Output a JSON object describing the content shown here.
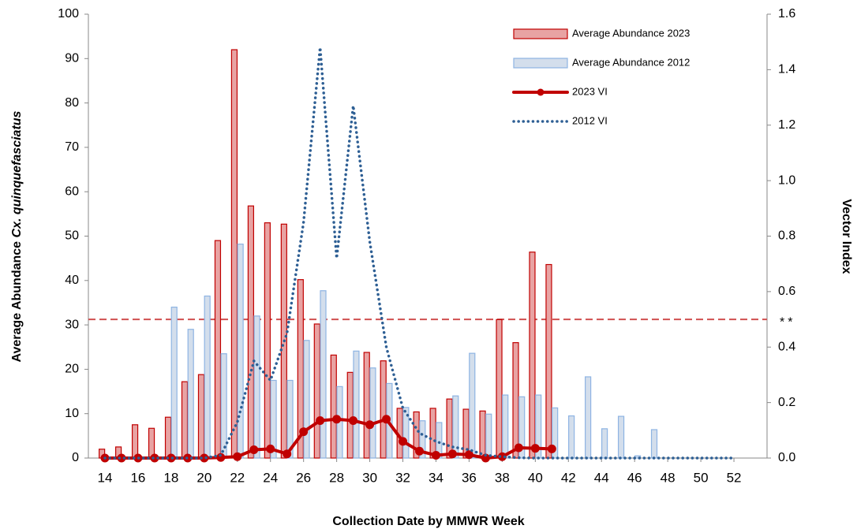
{
  "chart_data": {
    "type": "bar",
    "xlabel": "Collection Date by MMWR Week",
    "ylabel": "Average Abundance",
    "ylabel_species": "Cx. quinquefasciatus",
    "y2label": "Vector Index",
    "x": [
      14,
      15,
      16,
      17,
      18,
      19,
      20,
      21,
      22,
      23,
      24,
      25,
      26,
      27,
      28,
      29,
      30,
      31,
      32,
      33,
      34,
      35,
      36,
      37,
      38,
      39,
      40,
      41,
      42,
      43,
      44,
      45,
      46,
      47,
      48,
      49,
      50,
      51,
      52
    ],
    "xlim": [
      13,
      54
    ],
    "xticks": [
      14,
      16,
      18,
      20,
      22,
      24,
      26,
      28,
      30,
      32,
      34,
      36,
      38,
      40,
      42,
      44,
      46,
      48,
      50,
      52
    ],
    "ylim": [
      0,
      100
    ],
    "yticks": [
      0,
      10,
      20,
      30,
      40,
      50,
      60,
      70,
      80,
      90,
      100
    ],
    "y2lim": [
      0,
      1.6
    ],
    "y2ticks": [
      {
        "value": 0,
        "label": "0.0"
      },
      {
        "value": 0.2,
        "label": "0.2"
      },
      {
        "value": 0.4,
        "label": "0.4"
      },
      {
        "value": 0.6,
        "label": "0.6"
      },
      {
        "value": 0.8,
        "label": "0.8"
      },
      {
        "value": 1.0,
        "label": "1.0"
      },
      {
        "value": 1.2,
        "label": "1.2"
      },
      {
        "value": 1.4,
        "label": "1.4"
      },
      {
        "value": 1.6,
        "label": "1.6"
      }
    ],
    "threshold": {
      "value": 0.5,
      "label": "**",
      "color": "#d05050"
    },
    "series": [
      {
        "name": "Average Abundance 2023",
        "type": "bar",
        "color": "#e8a3a3",
        "edge": "#c00000",
        "values": [
          2,
          2.5,
          7.5,
          6.7,
          9.2,
          17.2,
          18.8,
          49,
          92,
          56.8,
          53,
          52.7,
          40.2,
          30.2,
          23.2,
          19.3,
          23.8,
          21.9,
          11.2,
          10.4,
          11.2,
          13.3,
          11,
          10.6,
          31.2,
          26,
          46.4,
          43.6,
          null,
          null,
          null,
          null,
          null,
          null,
          null,
          null,
          null,
          null,
          null
        ]
      },
      {
        "name": "Average Abundance 2012",
        "type": "bar",
        "color": "#d3deec",
        "edge": "#8eb4e3",
        "values": [
          0,
          0,
          0,
          0,
          34,
          29,
          36.5,
          23.5,
          48.2,
          32,
          17.5,
          17.5,
          26.5,
          37.7,
          16.1,
          24.1,
          20.3,
          16.8,
          11.4,
          8.4,
          8,
          14,
          23.6,
          9.9,
          14.2,
          13.8,
          14.2,
          11.3,
          9.5,
          18.3,
          6.6,
          9.4,
          0.5,
          6.4,
          0,
          0,
          0,
          0,
          0
        ]
      },
      {
        "name": "2023 VI",
        "type": "line",
        "axis": "y2",
        "color": "#c00000",
        "values": [
          0,
          0,
          0,
          0,
          0,
          0,
          0,
          0.002,
          0.005,
          0.03,
          0.033,
          0.015,
          0.095,
          0.135,
          0.14,
          0.135,
          0.12,
          0.14,
          0.06,
          0.025,
          0.01,
          0.015,
          0.012,
          0,
          0.005,
          0.037,
          0.035,
          0.033,
          null,
          null,
          null,
          null,
          null,
          null,
          null,
          null,
          null,
          null,
          null
        ]
      },
      {
        "name": "2012 VI",
        "type": "dotted",
        "axis": "y2",
        "color": "#2e5f94",
        "values": [
          0,
          0,
          0,
          0,
          0,
          0,
          0,
          0.01,
          0.13,
          0.35,
          0.28,
          0.45,
          0.85,
          1.48,
          0.72,
          1.27,
          0.78,
          0.4,
          0.18,
          0.09,
          0.06,
          0.04,
          0.03,
          0.01,
          0.005,
          0.001,
          0,
          0,
          0,
          0,
          0,
          0,
          0,
          0,
          0,
          0,
          0,
          0,
          0
        ]
      }
    ]
  }
}
